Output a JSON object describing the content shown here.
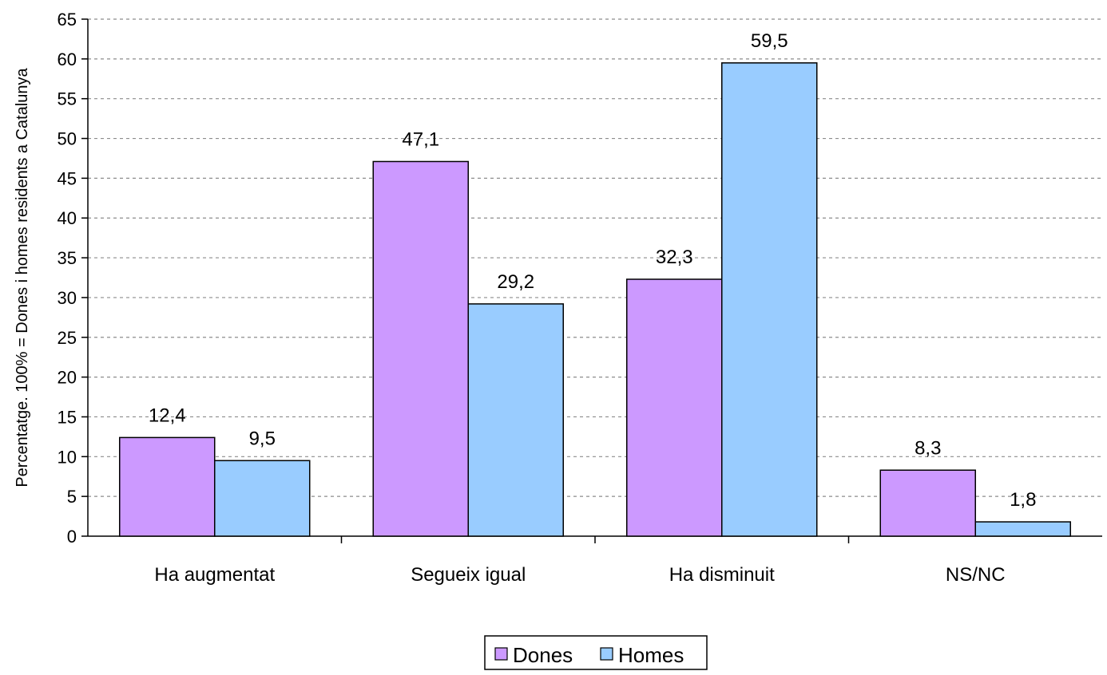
{
  "chart_data": {
    "type": "bar",
    "title": "",
    "xlabel": "",
    "ylabel": "Percentatge. 100% = Dones i homes residents a Catalunya",
    "ylim": [
      0,
      65
    ],
    "ytick_step": 5,
    "grid": true,
    "legend_position": "bottom-center",
    "categories": [
      "Ha augmentat",
      "Segueix igual",
      "Ha disminuit",
      "NS/NC"
    ],
    "series": [
      {
        "name": "Dones",
        "values": [
          12.4,
          47.1,
          32.3,
          8.3
        ],
        "labels": [
          "12,4",
          "47,1",
          "32,3",
          "8,3"
        ],
        "color": "#cc99ff"
      },
      {
        "name": "Homes",
        "values": [
          9.5,
          29.2,
          59.5,
          1.8
        ],
        "labels": [
          "9,5",
          "29,2",
          "59,5",
          "1,8"
        ],
        "color": "#99ccff"
      }
    ]
  }
}
